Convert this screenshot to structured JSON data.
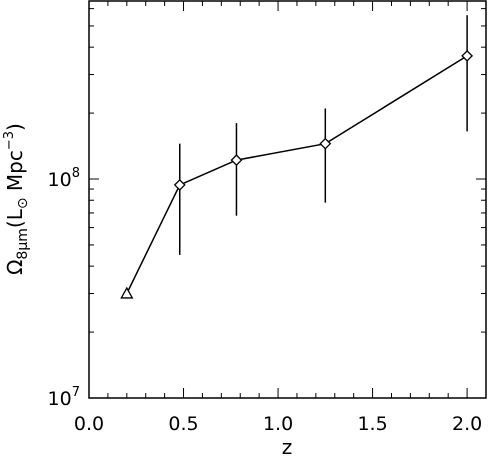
{
  "chart_data": {
    "type": "line",
    "xlabel": "z",
    "ylabel_main": "Ω",
    "ylabel_sub": "8μm",
    "ylabel_unit_pre": "(L",
    "ylabel_unit_sun": "⊙",
    "ylabel_unit_mid": " Mpc",
    "ylabel_unit_exp": "−3",
    "ylabel_unit_post": ")",
    "log_y": true,
    "xlim": [
      0.0,
      2.1
    ],
    "ylim": [
      10000000.0,
      650000000.0
    ],
    "x_ticks": [
      {
        "value": 0.0,
        "label": "0.0"
      },
      {
        "value": 0.5,
        "label": "0.5"
      },
      {
        "value": 1.0,
        "label": "1.0"
      },
      {
        "value": 1.5,
        "label": "1.5"
      },
      {
        "value": 2.0,
        "label": "2.0"
      }
    ],
    "y_ticks": [
      {
        "value": 10000000.0,
        "base": "10",
        "exp": "7"
      },
      {
        "value": 100000000.0,
        "base": "10",
        "exp": "8"
      }
    ],
    "series": [
      {
        "marker": "diamond",
        "connected": true,
        "points": [
          {
            "x": 0.2,
            "y": 30000000.0,
            "marker": "triangle"
          },
          {
            "x": 0.48,
            "y": 94000000.0,
            "marker": "diamond",
            "err_lo": 45000000.0,
            "err_hi": 145000000.0
          },
          {
            "x": 0.78,
            "y": 122000000.0,
            "marker": "diamond",
            "err_lo": 68000000.0,
            "err_hi": 180000000.0
          },
          {
            "x": 1.25,
            "y": 145000000.0,
            "marker": "diamond",
            "err_lo": 78000000.0,
            "err_hi": 210000000.0
          },
          {
            "x": 2.0,
            "y": 365000000.0,
            "marker": "diamond",
            "err_lo": 165000000.0,
            "err_hi": 560000000.0
          }
        ]
      }
    ],
    "grid": false
  }
}
